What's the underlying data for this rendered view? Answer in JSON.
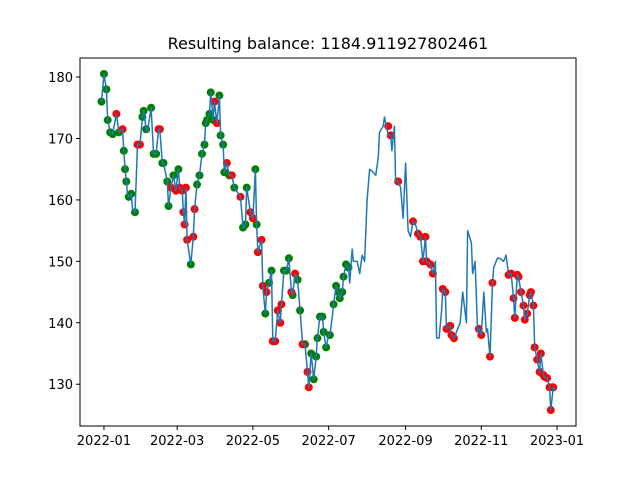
{
  "chart_data": {
    "type": "line",
    "title": "Resulting balance: 1184.911927802461",
    "xlim": [
      -19.3,
      380.3
    ],
    "ylim": [
      123.2,
      183.1
    ],
    "xticks": [
      {
        "value": 0,
        "label": "2022-01"
      },
      {
        "value": 59,
        "label": "2022-03"
      },
      {
        "value": 120,
        "label": "2022-05"
      },
      {
        "value": 181,
        "label": "2022-07"
      },
      {
        "value": 243,
        "label": "2022-09"
      },
      {
        "value": 304,
        "label": "2022-11"
      },
      {
        "value": 365,
        "label": "2023-01"
      }
    ],
    "yticks": [
      130,
      140,
      150,
      160,
      170,
      180
    ],
    "series": [
      {
        "type": "scatter",
        "color": "#008000",
        "x": [
          -2,
          0,
          2,
          3,
          5,
          7,
          12,
          16,
          17,
          18,
          20,
          22,
          25,
          31,
          32,
          34,
          38,
          40,
          42,
          47,
          48,
          51,
          52,
          56,
          60,
          70,
          75,
          77,
          79,
          81,
          82,
          83,
          85,
          86,
          88,
          93,
          94,
          96,
          97,
          101,
          105,
          112,
          114,
          115,
          122,
          123,
          130,
          133,
          135,
          145,
          147,
          149,
          152,
          156,
          158,
          162,
          167,
          169,
          171,
          172,
          174,
          176,
          177,
          179,
          182,
          185,
          187,
          189,
          190,
          192,
          193,
          195,
          197
        ],
        "values": [
          176,
          180.5,
          178,
          173,
          171,
          170.7,
          171,
          168,
          165,
          163,
          160.5,
          161,
          158,
          173.5,
          174.5,
          171.5,
          175,
          167.5,
          167.5,
          166,
          166,
          163,
          159,
          164,
          165,
          149.5,
          162.5,
          164,
          167.5,
          169,
          172.5,
          173,
          174,
          177.5,
          173,
          177,
          170.5,
          169,
          164.5,
          164,
          162,
          155.5,
          156,
          162,
          165,
          156,
          141.5,
          146.5,
          148.5,
          148.5,
          148.5,
          150.5,
          144.5,
          147,
          142,
          136.5,
          135,
          130.8,
          134.5,
          137.5,
          141,
          141,
          138.5,
          136,
          138,
          143,
          146,
          145,
          144,
          145,
          147.5,
          149.5,
          149
        ]
      },
      {
        "type": "scatter",
        "color": "#ff0000",
        "x": [
          10,
          15,
          27,
          29,
          44,
          45,
          54,
          58,
          61,
          63,
          64,
          65,
          66,
          67,
          72,
          73,
          89,
          91,
          99,
          103,
          110,
          118,
          120,
          124,
          127,
          128,
          131,
          136,
          138,
          140,
          142,
          143,
          151,
          154,
          160,
          164,
          165,
          229,
          231,
          237,
          249,
          253,
          255,
          257,
          259,
          260,
          263,
          265,
          273,
          275,
          276,
          279,
          280,
          282,
          302,
          304,
          311,
          313,
          326,
          328,
          330,
          331,
          333,
          334,
          336,
          338,
          339,
          341,
          343,
          344,
          346,
          347,
          349,
          351,
          352,
          354,
          355,
          357,
          359,
          360,
          362
        ],
        "values": [
          174,
          171.5,
          169,
          169,
          171.5,
          171.5,
          162,
          161.5,
          162,
          161.5,
          158,
          156,
          162,
          153.5,
          154,
          158.5,
          176,
          172.5,
          166,
          164,
          160.5,
          158,
          157,
          151.5,
          153.5,
          146,
          145,
          137,
          137,
          142,
          140,
          143,
          145,
          148,
          136.5,
          132,
          129.5,
          172,
          170.5,
          163,
          156.5,
          154.5,
          154,
          150,
          154,
          150,
          149.5,
          148,
          145.5,
          145,
          139,
          139.5,
          138,
          137.5,
          139,
          138,
          134.5,
          146.5,
          147.8,
          148,
          144,
          140.8,
          147.8,
          147.5,
          145,
          142.8,
          140.5,
          141.5,
          144.5,
          145,
          142.8,
          136,
          134,
          132,
          135,
          131.5,
          131.2,
          131,
          129.5,
          125.8,
          129.5
        ]
      },
      {
        "type": "line",
        "color": "#1f77b4",
        "x": [
          -2,
          0,
          2,
          3,
          5,
          7,
          10,
          12,
          15,
          16,
          17,
          18,
          19,
          20,
          22,
          23,
          25,
          27,
          29,
          31,
          32,
          34,
          35,
          38,
          40,
          42,
          44,
          45,
          47,
          48,
          51,
          52,
          54,
          56,
          58,
          60,
          61,
          63,
          64,
          65,
          66,
          67,
          70,
          72,
          73,
          75,
          77,
          79,
          81,
          82,
          83,
          85,
          86,
          88,
          89,
          91,
          93,
          94,
          96,
          97,
          99,
          101,
          103,
          105,
          110,
          112,
          114,
          115,
          118,
          120,
          122,
          123,
          124,
          127,
          128,
          130,
          131,
          133,
          135,
          136,
          138,
          140,
          142,
          143,
          145,
          147,
          149,
          151,
          152,
          154,
          156,
          158,
          160,
          162,
          164,
          165,
          167,
          169,
          171,
          172,
          174,
          176,
          177,
          179,
          181,
          182,
          184,
          185,
          187,
          189,
          190,
          192,
          193,
          195,
          197,
          198,
          200,
          201,
          204,
          206,
          208,
          210,
          212,
          214,
          217,
          219,
          221,
          222,
          225,
          226,
          229,
          231,
          232,
          234,
          235,
          237,
          239,
          241,
          243,
          245,
          247,
          249,
          251,
          253,
          255,
          257,
          259,
          260,
          263,
          265,
          267,
          268,
          270,
          272,
          273,
          275,
          276,
          279,
          280,
          282,
          285,
          287,
          289,
          292,
          293,
          296,
          297,
          299,
          301,
          302,
          304,
          306,
          308,
          309,
          311,
          313,
          314,
          317,
          319,
          322,
          324,
          326,
          328,
          330,
          331,
          333,
          334,
          336,
          338,
          339,
          341,
          343,
          344,
          346,
          347,
          349,
          351,
          352,
          354,
          355,
          357,
          359,
          360,
          362,
          364
        ],
        "values": [
          176,
          180.5,
          178,
          173,
          171,
          170.7,
          174,
          171,
          171.5,
          168,
          165,
          163,
          161,
          160.5,
          161,
          158.5,
          158,
          169,
          169,
          173.5,
          174.5,
          171.5,
          171,
          175,
          167.5,
          167.5,
          171.5,
          171.5,
          166,
          166,
          163,
          159,
          162,
          164,
          161.5,
          165,
          162,
          161.5,
          158,
          156,
          162,
          153.5,
          149.5,
          154,
          158.5,
          162.5,
          164,
          167.5,
          169,
          172.5,
          173,
          174,
          177.5,
          173,
          176,
          172.5,
          177,
          170.5,
          169,
          164.5,
          166,
          164,
          164,
          162,
          160.5,
          155.5,
          156,
          162,
          158,
          157,
          165,
          156,
          151.5,
          153.5,
          146,
          141.5,
          145,
          146.5,
          148.5,
          137,
          137,
          142,
          140,
          143,
          148.5,
          148.5,
          150.5,
          145,
          144.5,
          148,
          147,
          142,
          136.5,
          136.5,
          132,
          129.5,
          135,
          130.8,
          134.5,
          137.5,
          141,
          141,
          138.5,
          136,
          138,
          138,
          141,
          143,
          146,
          145,
          144,
          145,
          147.5,
          149.5,
          149,
          146.5,
          152,
          150,
          150,
          148,
          151,
          150,
          160,
          165,
          164.5,
          164,
          167,
          171,
          172,
          173.5,
          170.5,
          170.5,
          168,
          172,
          163,
          163,
          162,
          157,
          166,
          155,
          154,
          156.5,
          156,
          154.5,
          154,
          150,
          154,
          150,
          149.5,
          148,
          150,
          137.5,
          137.5,
          142,
          145.5,
          145,
          139,
          139.5,
          138,
          137.5,
          139,
          140,
          145,
          140,
          155,
          153,
          148,
          150,
          138.5,
          139,
          138,
          145,
          138.5,
          139,
          134.5,
          146.5,
          149,
          150.5,
          150.5,
          150,
          151,
          147.8,
          148,
          144,
          140.8,
          147.8,
          147.5,
          145,
          142.8,
          140.5,
          141.5,
          144.5,
          145,
          142.8,
          136,
          134,
          132,
          135,
          131.5,
          131.2,
          131,
          129.5,
          125.8,
          129.5,
          129
        ]
      }
    ]
  }
}
